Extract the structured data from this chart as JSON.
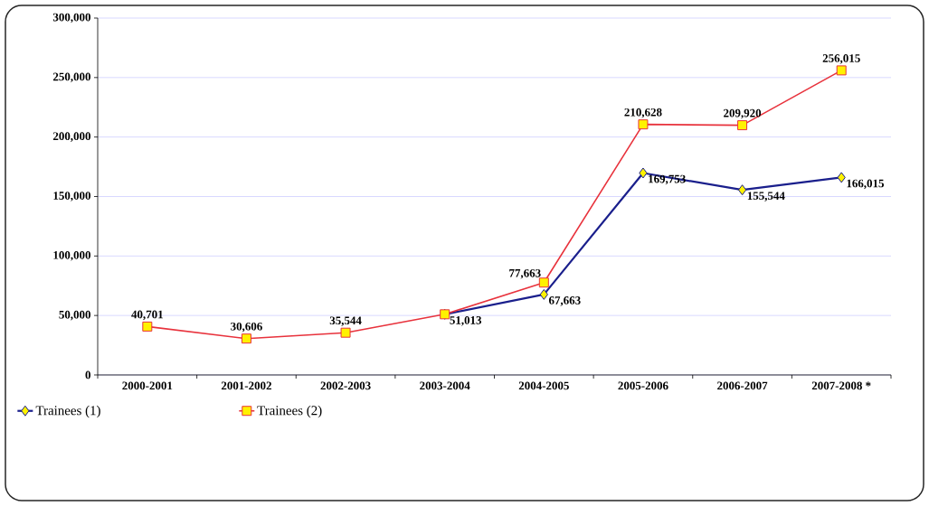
{
  "chart_data": {
    "type": "line",
    "categories": [
      "2000-2001",
      "2001-2002",
      "2002-2003",
      "2003-2004",
      "2004-2005",
      "2005-2006",
      "2006-2007",
      "2007-2008 *"
    ],
    "series": [
      {
        "name": "Trainees (1)",
        "color": "#1a1f8c",
        "marker": "diamond",
        "values": [
          null,
          null,
          null,
          51013,
          67663,
          169753,
          155544,
          166015
        ],
        "value_labels": [
          null,
          null,
          null,
          "51,013",
          "67,663",
          "169,753",
          "155,544",
          "166,015"
        ]
      },
      {
        "name": "Trainees (2)",
        "color": "#e8323c",
        "marker": "square",
        "values": [
          40701,
          30606,
          35544,
          51013,
          77663,
          210628,
          209920,
          256015
        ],
        "value_labels": [
          "40,701",
          "30,606",
          "35,544",
          null,
          "77,663",
          "210,628",
          "209,920",
          "256,015"
        ]
      }
    ],
    "ylim": [
      0,
      300000
    ],
    "yticks": [
      {
        "value": 0,
        "label": "0"
      },
      {
        "value": 50000,
        "label": "50,000"
      },
      {
        "value": 100000,
        "label": "100,000"
      },
      {
        "value": 150000,
        "label": "150,000"
      },
      {
        "value": 200000,
        "label": "200,000"
      },
      {
        "value": 250000,
        "label": "250,000"
      },
      {
        "value": 300000,
        "label": "300,000"
      }
    ],
    "grid": "y",
    "legend": "bottom left",
    "line_style": "solid"
  }
}
